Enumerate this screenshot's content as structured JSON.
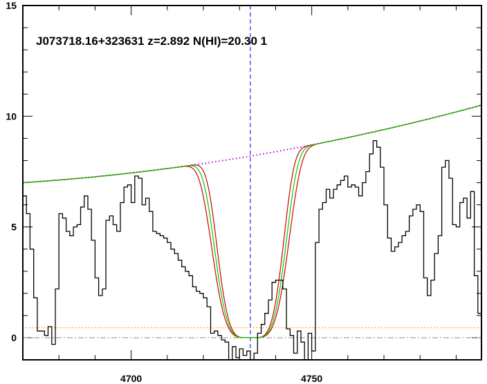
{
  "chart_data": {
    "type": "line",
    "annotation": "J073718.16+323631 z=2.892 N(HI)=20.30 1",
    "xlim": [
      4670,
      4797
    ],
    "ylim": [
      -1,
      15
    ],
    "x_ticks": [
      {
        "value": 4700,
        "label": "4700"
      },
      {
        "value": 4750,
        "label": "4750"
      }
    ],
    "y_ticks": [
      {
        "value": 0,
        "label": "0"
      },
      {
        "value": 5,
        "label": "5"
      },
      {
        "value": 10,
        "label": "10"
      },
      {
        "value": 15,
        "label": "15"
      }
    ],
    "x_minor_step": 10,
    "y_minor_step": 1,
    "center_line_x": 4733,
    "zero_line_y": 0,
    "colors": {
      "flux": "#000000",
      "model": "#00cc00",
      "bounds": "#cc0000",
      "continuum": "#aa00dd",
      "error": "#ff8800",
      "center": "#0000cc",
      "zero": "#888888"
    },
    "flux_step": {
      "x": [
        4670,
        4671,
        4672,
        4673,
        4674,
        4675,
        4676,
        4677,
        4678,
        4679,
        4680,
        4681,
        4682,
        4683,
        4684,
        4685,
        4686,
        4687,
        4688,
        4689,
        4690,
        4691,
        4692,
        4693,
        4694,
        4695,
        4696,
        4697,
        4698,
        4699,
        4700,
        4701,
        4702,
        4703,
        4704,
        4705,
        4706,
        4707,
        4708,
        4709,
        4710,
        4711,
        4712,
        4713,
        4714,
        4715,
        4716,
        4717,
        4718,
        4719,
        4720,
        4721,
        4722,
        4723,
        4724,
        4725,
        4726,
        4727,
        4728,
        4729,
        4730,
        4731,
        4732,
        4733,
        4734,
        4735,
        4736,
        4737,
        4738,
        4739,
        4740,
        4741,
        4742,
        4743,
        4744,
        4745,
        4746,
        4747,
        4748,
        4749,
        4750,
        4751,
        4752,
        4753,
        4754,
        4755,
        4756,
        4757,
        4758,
        4759,
        4760,
        4761,
        4762,
        4763,
        4764,
        4765,
        4766,
        4767,
        4768,
        4769,
        4770,
        4771,
        4772,
        4773,
        4774,
        4775,
        4776,
        4777,
        4778,
        4779,
        4780,
        4781,
        4782,
        4783,
        4784,
        4785,
        4786,
        4787,
        4788,
        4789,
        4790,
        4791,
        4792,
        4793,
        4794,
        4795,
        4796
      ],
      "y": [
        6.4,
        5.6,
        4.0,
        1.8,
        0.3,
        0.3,
        0.1,
        0.5,
        -0.3,
        2.2,
        5.6,
        5.4,
        4.8,
        4.6,
        5.0,
        5.1,
        5.9,
        6.4,
        5.8,
        4.4,
        2.7,
        1.9,
        2.2,
        5.3,
        5.5,
        5.1,
        4.8,
        6.1,
        6.8,
        6.9,
        6.1,
        7.3,
        7.2,
        6.0,
        6.3,
        5.7,
        4.8,
        4.7,
        4.6,
        4.5,
        4.3,
        4.0,
        3.8,
        3.5,
        3.2,
        3.0,
        2.8,
        2.3,
        2.1,
        2.0,
        1.8,
        1.4,
        0.2,
        0.3,
        0.1,
        -0.1,
        -0.2,
        -1.1,
        -0.4,
        -0.9,
        -0.5,
        -0.8,
        -0.6,
        -1.2,
        -0.7,
        0.2,
        0.6,
        1.1,
        1.7,
        2.5,
        2.6,
        2.6,
        2.2,
        0.4,
        0.1,
        -0.7,
        0.3,
        -0.2,
        -1.1,
        0.2,
        -0.6,
        4.3,
        5.8,
        6.1,
        6.7,
        6.3,
        6.7,
        6.9,
        7.1,
        7.3,
        6.8,
        6.9,
        6.8,
        6.4,
        7.0,
        7.5,
        8.3,
        8.9,
        8.6,
        7.7,
        6.0,
        4.5,
        3.9,
        4.1,
        4.3,
        4.6,
        4.8,
        5.5,
        5.8,
        6.0,
        5.7,
        2.7,
        1.9,
        2.6,
        3.8,
        4.6,
        7.7,
        8.0,
        7.2,
        5.1,
        5.0,
        6.1,
        6.3,
        5.4,
        6.6,
        2.8,
        1.1
      ]
    },
    "error_line": {
      "x": [
        4670,
        4797
      ],
      "y": [
        0.45,
        0.45
      ]
    },
    "continuum": {
      "x": [
        4670,
        4733,
        4797
      ],
      "y": [
        7.0,
        8.2,
        10.5
      ]
    },
    "model": {
      "center": 4733,
      "width": 10.0,
      "core": 0.75,
      "sharpness": 4
    },
    "bound_width": [
      10.8,
      9.2
    ]
  }
}
